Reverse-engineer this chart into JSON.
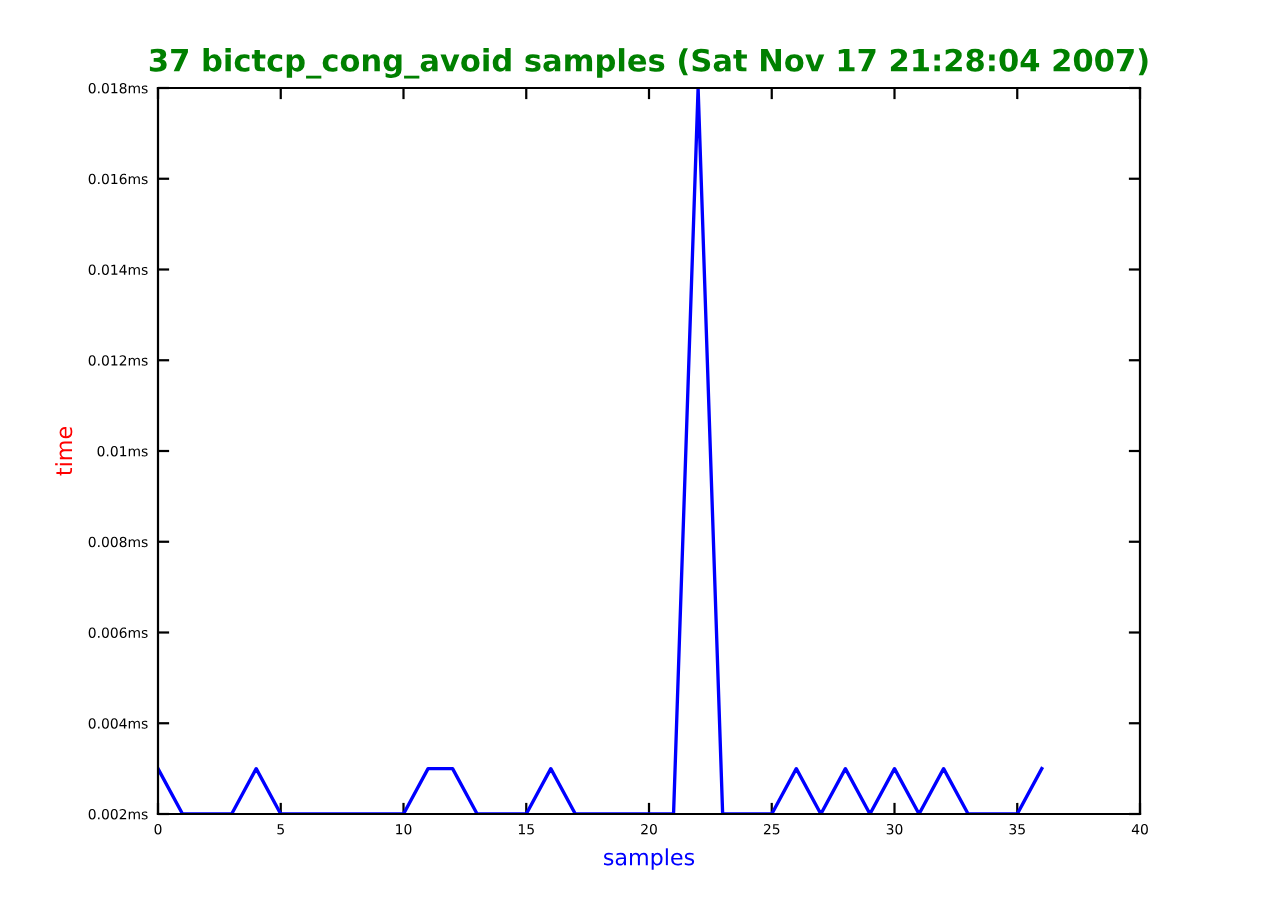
{
  "chart_data": {
    "type": "line",
    "title": "37 bictcp_cong_avoid samples (Sat Nov 17 21:28:04 2007)",
    "xlabel": "samples",
    "ylabel": "time",
    "x": [
      0,
      1,
      2,
      3,
      4,
      5,
      6,
      7,
      8,
      9,
      10,
      11,
      12,
      13,
      14,
      15,
      16,
      17,
      18,
      19,
      20,
      21,
      22,
      23,
      24,
      25,
      26,
      27,
      28,
      29,
      30,
      31,
      32,
      33,
      34,
      35,
      36
    ],
    "series": [
      {
        "color": "#0000ff",
        "values": [
          0.003,
          0.002,
          0.002,
          0.002,
          0.003,
          0.002,
          0.002,
          0.002,
          0.002,
          0.002,
          0.002,
          0.003,
          0.003,
          0.002,
          0.002,
          0.002,
          0.003,
          0.002,
          0.002,
          0.002,
          0.002,
          0.002,
          0.018,
          0.002,
          0.002,
          0.002,
          0.003,
          0.002,
          0.003,
          0.002,
          0.003,
          0.002,
          0.003,
          0.002,
          0.002,
          0.002,
          0.003
        ]
      }
    ],
    "xlim": [
      0,
      40
    ],
    "xticks": [
      0,
      5,
      10,
      15,
      20,
      25,
      30,
      35,
      40
    ],
    "ylim": [
      0.002,
      0.018
    ],
    "yticks": [
      {
        "value": 0.002,
        "label": "0.002ms"
      },
      {
        "value": 0.004,
        "label": "0.004ms"
      },
      {
        "value": 0.006,
        "label": "0.006ms"
      },
      {
        "value": 0.008,
        "label": "0.008ms"
      },
      {
        "value": 0.01,
        "label": "0.01ms"
      },
      {
        "value": 0.012,
        "label": "0.012ms"
      },
      {
        "value": 0.014,
        "label": "0.014ms"
      },
      {
        "value": 0.016,
        "label": "0.016ms"
      },
      {
        "value": 0.018,
        "label": "0.018ms"
      }
    ],
    "grid": false,
    "legend": false,
    "marker": "none",
    "line_style": "solid"
  }
}
